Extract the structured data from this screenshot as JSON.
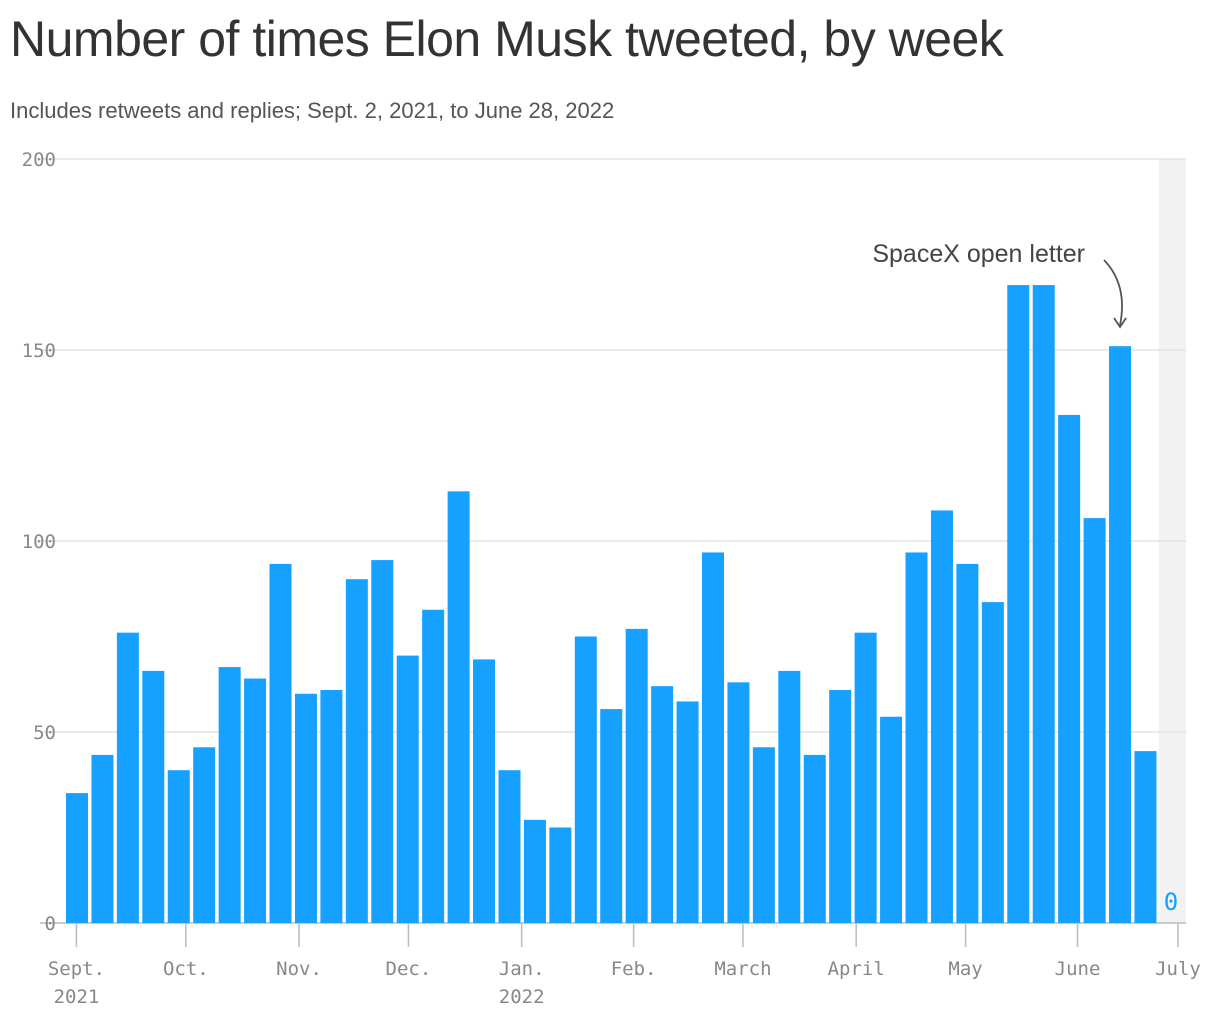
{
  "chart_data": {
    "type": "bar",
    "title": "Number of times Elon Musk tweeted, by week",
    "subtitle": "Includes retweets and replies; Sept. 2, 2021, to June 28, 2022",
    "ylim": [
      0,
      200
    ],
    "yticks": [
      0,
      50,
      100,
      150,
      200
    ],
    "x_tick_labels": [
      {
        "line1": "Sept.",
        "line2": "2021"
      },
      {
        "line1": "Oct.",
        "line2": ""
      },
      {
        "line1": "Nov.",
        "line2": ""
      },
      {
        "line1": "Dec.",
        "line2": ""
      },
      {
        "line1": "Jan.",
        "line2": "2022"
      },
      {
        "line1": "Feb.",
        "line2": ""
      },
      {
        "line1": "March",
        "line2": ""
      },
      {
        "line1": "April",
        "line2": ""
      },
      {
        "line1": "May",
        "line2": ""
      },
      {
        "line1": "June",
        "line2": ""
      },
      {
        "line1": "July",
        "line2": ""
      }
    ],
    "values": [
      34,
      44,
      76,
      66,
      40,
      46,
      67,
      64,
      94,
      60,
      61,
      90,
      95,
      70,
      82,
      113,
      69,
      40,
      27,
      25,
      75,
      56,
      77,
      62,
      58,
      97,
      63,
      46,
      66,
      44,
      61,
      76,
      54,
      97,
      108,
      94,
      84,
      167,
      167,
      133,
      106,
      151,
      45,
      0
    ],
    "last_bar_label": "0",
    "annotation": {
      "text": "SpaceX open letter",
      "bar_index": 41
    },
    "bar_color": "#16a0ff",
    "grid": true,
    "shaded_region_color": "#f2f2f2"
  }
}
